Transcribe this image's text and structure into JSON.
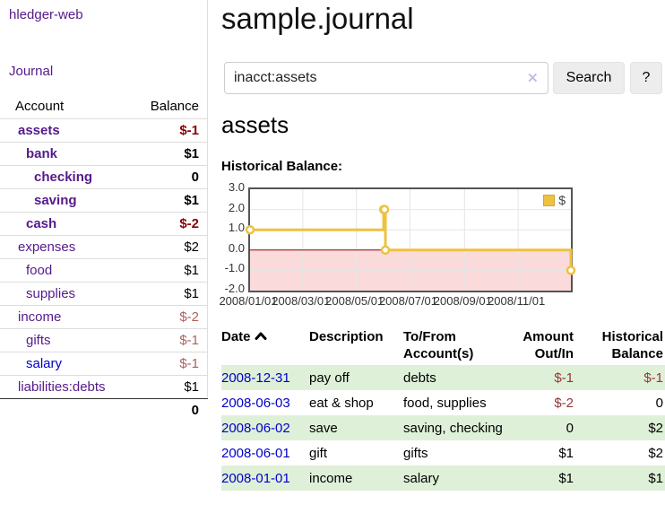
{
  "sidebar": {
    "brand": "hledger-web",
    "journal_link": "Journal",
    "accounts_table": {
      "headers": {
        "account": "Account",
        "balance": "Balance"
      },
      "rows": [
        {
          "name": "assets",
          "indent": 0,
          "bold": true,
          "link": "purple",
          "balance": "$-1",
          "balance_style": "neg-bold"
        },
        {
          "name": "bank",
          "indent": 1,
          "bold": true,
          "link": "purple",
          "balance": "$1",
          "balance_style": "pos-bold"
        },
        {
          "name": "checking",
          "indent": 2,
          "bold": true,
          "link": "purple",
          "balance": "0",
          "balance_style": "pos-bold"
        },
        {
          "name": "saving",
          "indent": 2,
          "bold": true,
          "link": "purple",
          "balance": "$1",
          "balance_style": "pos-bold"
        },
        {
          "name": "cash",
          "indent": 1,
          "bold": true,
          "link": "purple",
          "balance": "$-2",
          "balance_style": "neg-bold"
        },
        {
          "name": "expenses",
          "indent": 0,
          "bold": false,
          "link": "purple",
          "balance": "$2",
          "balance_style": "pos"
        },
        {
          "name": "food",
          "indent": 1,
          "bold": false,
          "link": "purple",
          "balance": "$1",
          "balance_style": "pos"
        },
        {
          "name": "supplies",
          "indent": 1,
          "bold": false,
          "link": "purple",
          "balance": "$1",
          "balance_style": "pos"
        },
        {
          "name": "income",
          "indent": 0,
          "bold": false,
          "link": "purple",
          "balance": "$-2",
          "balance_style": "neg"
        },
        {
          "name": "gifts",
          "indent": 1,
          "bold": false,
          "link": "purple",
          "balance": "$-1",
          "balance_style": "neg"
        },
        {
          "name": "salary",
          "indent": 1,
          "bold": false,
          "link": "blue",
          "balance": "$-1",
          "balance_style": "neg"
        },
        {
          "name": "liabilities:debts",
          "indent": 0,
          "bold": false,
          "link": "purple",
          "balance": "$1",
          "balance_style": "pos"
        }
      ],
      "total": "0"
    }
  },
  "main": {
    "title": "sample.journal",
    "search": {
      "value": "inacct:assets",
      "clear_icon": "✕",
      "search_button": "Search",
      "help_button": "?"
    },
    "account_heading": "assets"
  },
  "chart_data": {
    "type": "line",
    "title": "Historical Balance:",
    "style": "steps",
    "series": [
      {
        "name": "$",
        "color": "#edc240",
        "points": [
          [
            "2008-01-01",
            1
          ],
          [
            "2008-06-01",
            2
          ],
          [
            "2008-06-02",
            2
          ],
          [
            "2008-06-03",
            0
          ],
          [
            "2008-12-31",
            -1
          ]
        ]
      }
    ],
    "ylim": [
      -2,
      3
    ],
    "yticks": [
      3,
      2,
      1,
      0,
      -1,
      -2
    ],
    "xticks": [
      "2008/01/01",
      "2008/03/01",
      "2008/05/01",
      "2008/07/01",
      "2008/09/01",
      "2008/11/01"
    ],
    "xrange": [
      "2008-01-01",
      "2008-12-31"
    ],
    "legend": {
      "label": "$",
      "position": "top-right"
    },
    "grid": true,
    "colors": {
      "line": "#edc240",
      "grid": "#e6e6e6",
      "zero_line": "#8b0000",
      "negative_region": "#fadada",
      "border": "#545454"
    }
  },
  "transactions": {
    "headers": [
      "Date",
      "Description",
      "To/From Account(s)",
      "Amount Out/In",
      "Historical Balance"
    ],
    "sort": {
      "column": "Date",
      "direction": "ascending"
    },
    "rows": [
      {
        "date": "2008-12-31",
        "description": "pay off",
        "accounts": "debts",
        "amount": "$-1",
        "amount_negative": true,
        "balance": "$-1",
        "balance_negative": true
      },
      {
        "date": "2008-06-03",
        "description": "eat & shop",
        "accounts": "food, supplies",
        "amount": "$-2",
        "amount_negative": true,
        "balance": "0",
        "balance_negative": false
      },
      {
        "date": "2008-06-02",
        "description": "save",
        "accounts": "saving, checking",
        "amount": "0",
        "amount_negative": false,
        "balance": "$2",
        "balance_negative": false
      },
      {
        "date": "2008-06-01",
        "description": "gift",
        "accounts": "gifts",
        "amount": "$1",
        "amount_negative": false,
        "balance": "$2",
        "balance_negative": false
      },
      {
        "date": "2008-01-01",
        "description": "income",
        "accounts": "salary",
        "amount": "$1",
        "amount_negative": false,
        "balance": "$1",
        "balance_negative": false
      }
    ]
  }
}
